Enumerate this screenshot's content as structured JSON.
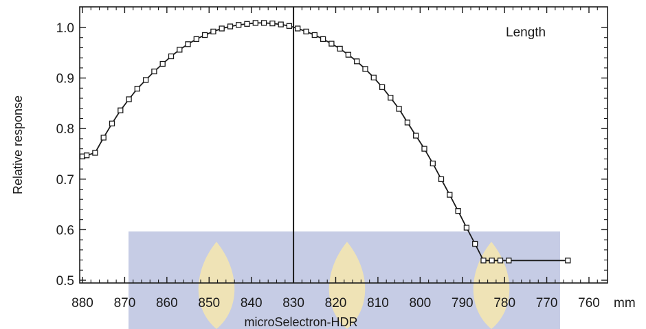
{
  "chart_data": {
    "type": "line",
    "ylabel": "Relative response",
    "xlabel": "microSelectron-HDR",
    "x_unit": "mm",
    "annotation": "Length",
    "xlim": [
      880,
      760
    ],
    "ylim": [
      0.5,
      1.04
    ],
    "x_ticks": [
      880,
      870,
      860,
      850,
      840,
      830,
      820,
      810,
      800,
      790,
      780,
      770,
      760
    ],
    "y_ticks": [
      0.5,
      0.6,
      0.7,
      0.8,
      0.9,
      1.0
    ],
    "y_tick_labels": [
      "0.5",
      "0.6",
      "0.7",
      "0.8",
      "0.9",
      "1.0"
    ],
    "reference_line_x": 830,
    "x_reversed": true,
    "marker": "open-square",
    "series": [
      {
        "x": [
          880,
          879,
          877,
          875,
          873,
          871,
          869,
          867,
          865,
          863,
          861,
          859,
          857,
          855,
          853,
          851,
          849,
          847,
          845,
          843,
          841,
          839,
          837,
          835,
          833,
          831,
          829,
          827,
          825,
          823,
          821,
          819,
          817,
          815,
          813,
          811,
          809,
          807,
          805,
          803,
          801,
          799,
          797,
          795,
          793,
          791,
          789,
          787,
          785,
          783,
          781,
          779,
          777,
          775,
          773,
          771,
          769,
          767,
          765
        ],
        "y": [
          0.745,
          0.747,
          0.752,
          0.782,
          0.81,
          0.836,
          0.858,
          0.879,
          0.896,
          0.913,
          0.928,
          0.943,
          0.956,
          0.967,
          0.977,
          0.985,
          0.992,
          0.998,
          1.002,
          1.005,
          1.007,
          1.009,
          1.009,
          1.008,
          1.006,
          1.003,
          0.998,
          0.992,
          0.985,
          0.977,
          0.968,
          0.958,
          0.946,
          0.933,
          0.918,
          0.901,
          0.882,
          0.861,
          0.839,
          0.812,
          0.786,
          0.76,
          0.731,
          0.7,
          0.669,
          0.637,
          0.604,
          0.572,
          0.539,
          0.539,
          0.539,
          0.539,
          0.539,
          0.539,
          0.539,
          0.539,
          0.539,
          0.539,
          0.539
        ]
      }
    ],
    "colors": {
      "line": "#1a1a1a",
      "marker_fill": "#ffffff",
      "watermark_blue": "#bcc3e0",
      "watermark_gold": "#f3e6b0"
    }
  }
}
